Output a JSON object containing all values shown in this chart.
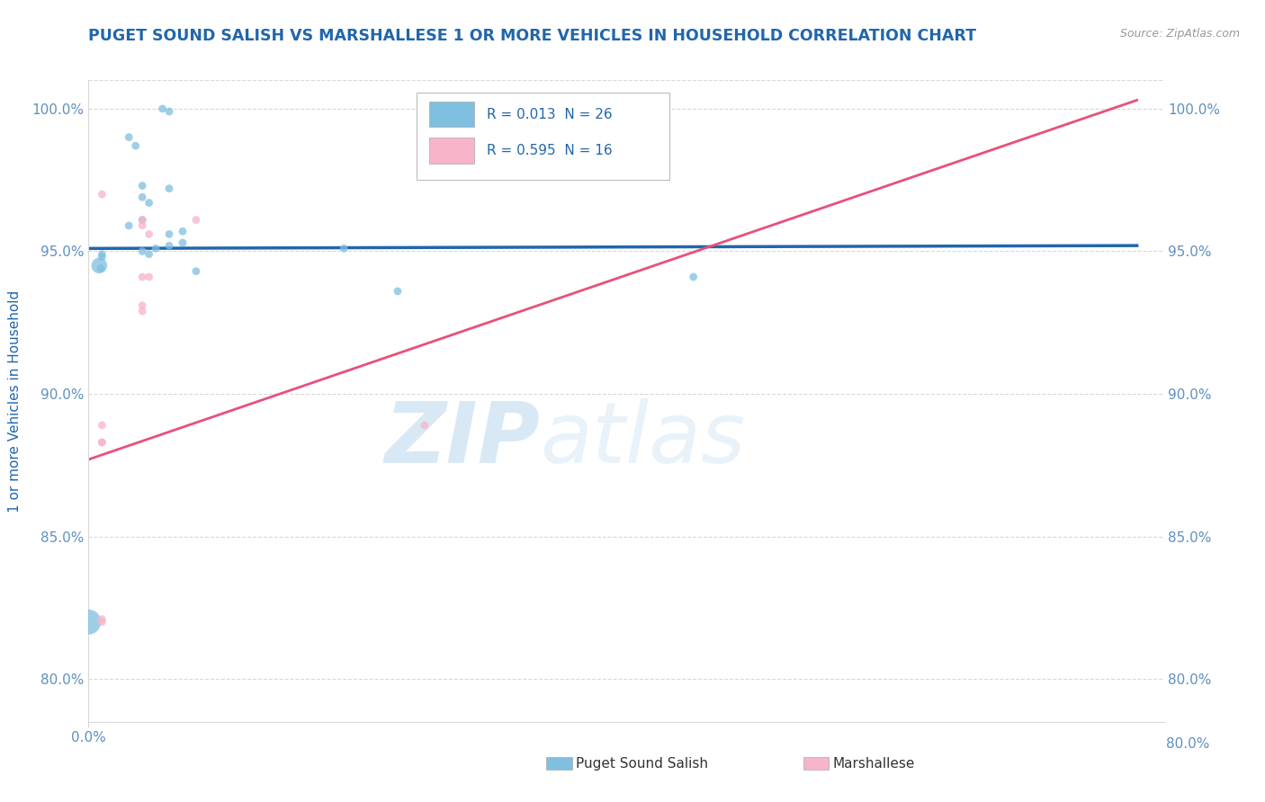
{
  "title": "PUGET SOUND SALISH VS MARSHALLESE 1 OR MORE VEHICLES IN HOUSEHOLD CORRELATION CHART",
  "source": "Source: ZipAtlas.com",
  "ylabel": "1 or more Vehicles in Household",
  "legend_label1": "Puget Sound Salish",
  "legend_label2": "Marshallese",
  "legend_R1": "R = 0.013",
  "legend_N1": "N = 26",
  "legend_R2": "R = 0.595",
  "legend_N2": "N = 16",
  "xlim": [
    0.0,
    0.08
  ],
  "ylim": [
    0.785,
    1.01
  ],
  "yticks": [
    0.8,
    0.85,
    0.9,
    0.95,
    1.0
  ],
  "ytick_labels": [
    "80.0%",
    "85.0%",
    "90.0%",
    "95.0%",
    "100.0%"
  ],
  "xtick_val": 0.0,
  "xtick_label": "0.0%",
  "blue_scatter_x": [
    0.0055,
    0.006,
    0.003,
    0.0035,
    0.004,
    0.006,
    0.004,
    0.0045,
    0.004,
    0.003,
    0.007,
    0.006,
    0.007,
    0.006,
    0.005,
    0.004,
    0.0045,
    0.008,
    0.019,
    0.045,
    0.023,
    0.001,
    0.001,
    0.0008,
    0.0009,
    0.0
  ],
  "blue_scatter_y": [
    1.0,
    0.999,
    0.99,
    0.987,
    0.973,
    0.972,
    0.969,
    0.967,
    0.961,
    0.959,
    0.957,
    0.956,
    0.953,
    0.952,
    0.951,
    0.95,
    0.949,
    0.943,
    0.951,
    0.941,
    0.936,
    0.949,
    0.948,
    0.945,
    0.944,
    0.82
  ],
  "blue_scatter_size": [
    40,
    40,
    40,
    40,
    40,
    40,
    40,
    40,
    40,
    40,
    40,
    40,
    40,
    40,
    40,
    40,
    40,
    40,
    40,
    40,
    40,
    40,
    40,
    160,
    40,
    400
  ],
  "pink_scatter_x": [
    0.04,
    0.001,
    0.004,
    0.004,
    0.0045,
    0.004,
    0.0045,
    0.004,
    0.004,
    0.008,
    0.001,
    0.001,
    0.001,
    0.025,
    0.001,
    0.001
  ],
  "pink_scatter_y": [
    1.0,
    0.97,
    0.961,
    0.959,
    0.956,
    0.941,
    0.941,
    0.931,
    0.929,
    0.961,
    0.889,
    0.883,
    0.883,
    0.889,
    0.821,
    0.82
  ],
  "pink_scatter_size": [
    40,
    40,
    40,
    40,
    40,
    40,
    40,
    40,
    40,
    40,
    40,
    40,
    40,
    40,
    40,
    40
  ],
  "blue_line_x": [
    0.0,
    0.078
  ],
  "blue_line_y": [
    0.951,
    0.952
  ],
  "pink_line_x": [
    0.0,
    0.078
  ],
  "pink_line_y": [
    0.877,
    1.003
  ],
  "watermark_zip": "ZIP",
  "watermark_atlas": "atlas",
  "blue_color": "#7fbfdf",
  "pink_color": "#f8b4c8",
  "blue_line_color": "#2166ac",
  "pink_line_color": "#e8507a",
  "title_color": "#2166ac",
  "axis_label_color": "#2166ac",
  "tick_color": "#6090c0",
  "grid_color": "#d8d8d8",
  "background_color": "#ffffff"
}
